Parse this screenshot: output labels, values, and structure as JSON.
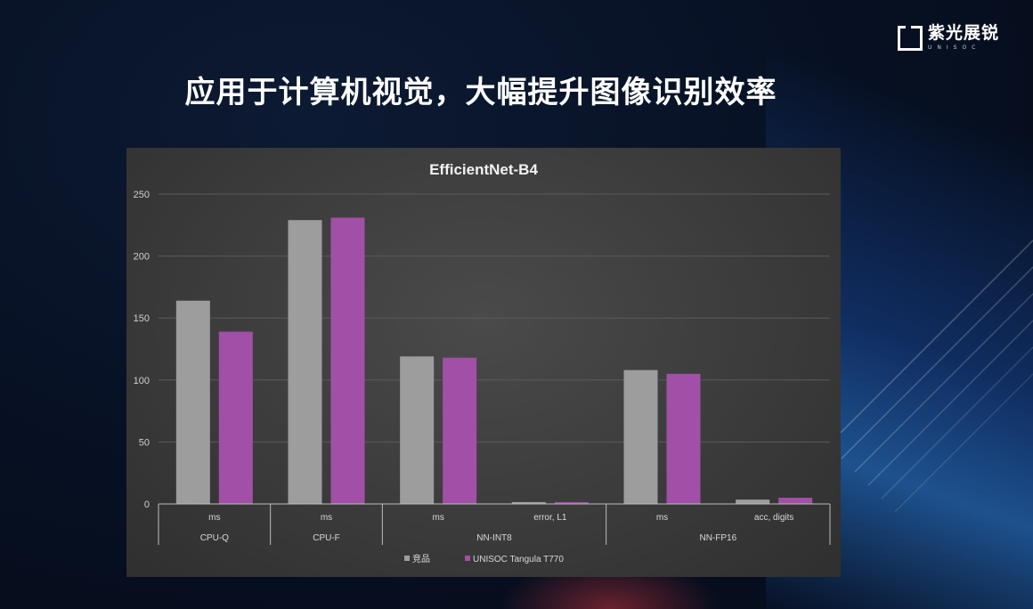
{
  "header": {
    "title": "应用于计算机视觉，大幅提升图像识别效率",
    "brand_name": "紫光展锐",
    "brand_sub": "UNISOC"
  },
  "colors": {
    "series1": "#9d9d9d",
    "series2": "#a24fa8",
    "background": "#071022"
  },
  "chart_data": {
    "type": "bar",
    "title": "EfficientNet-B4",
    "xlabel": "",
    "ylabel": "",
    "ylim": [
      0,
      250
    ],
    "yticks": [
      0,
      50,
      100,
      150,
      200,
      250
    ],
    "grid": true,
    "legend_position": "bottom",
    "categories": [
      "ms",
      "ms",
      "ms",
      "error, L1",
      "ms",
      "acc, digits"
    ],
    "groups": [
      {
        "label": "CPU-Q",
        "span": 1
      },
      {
        "label": "CPU-F",
        "span": 1
      },
      {
        "label": "NN-INT8",
        "span": 2
      },
      {
        "label": "NN-FP16",
        "span": 2
      }
    ],
    "series": [
      {
        "name": "竞品",
        "values": [
          164,
          229,
          119,
          1.5,
          108,
          3.5
        ]
      },
      {
        "name": "UNISOC Tangula T770",
        "values": [
          139,
          231,
          118,
          1.5,
          105,
          5
        ]
      }
    ]
  }
}
